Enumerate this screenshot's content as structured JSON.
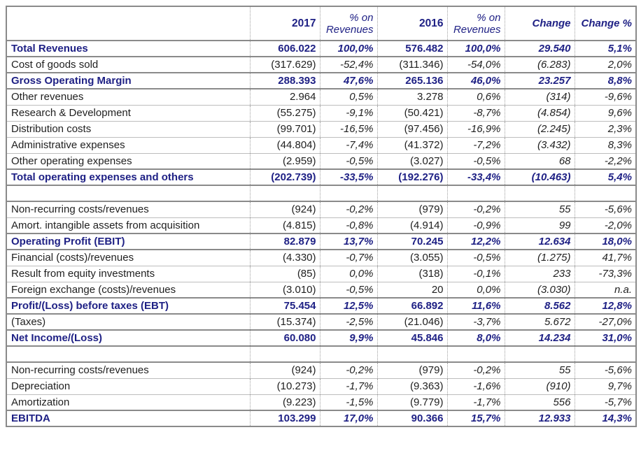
{
  "colors": {
    "navy": "#1f2185",
    "text": "#1f1f1f",
    "grid_thick": "#8a8a8a",
    "grid_thin": "#bdbdbd",
    "grid_dotted": "#9f9f9f",
    "background": "#ffffff"
  },
  "table": {
    "columns": [
      "",
      "2017",
      "% on Revenues",
      "2016",
      "% on Revenues",
      "Change",
      "Change %"
    ],
    "rows": [
      {
        "label": "Total Revenues",
        "v1": "606.022",
        "p1": "100,0%",
        "v2": "576.482",
        "p2": "100,0%",
        "ch": "29.540",
        "chp": "5,1%",
        "bold": true
      },
      {
        "label": "Cost of goods sold",
        "v1": "(317.629)",
        "p1": "-52,4%",
        "v2": "(311.346)",
        "p2": "-54,0%",
        "ch": "(6.283)",
        "chp": "2,0%"
      },
      {
        "label": "Gross Operating Margin",
        "v1": "288.393",
        "p1": "47,6%",
        "v2": "265.136",
        "p2": "46,0%",
        "ch": "23.257",
        "chp": "8,8%",
        "bold": true
      },
      {
        "label": "Other revenues",
        "v1": "2.964",
        "p1": "0,5%",
        "v2": "3.278",
        "p2": "0,6%",
        "ch": "(314)",
        "chp": "-9,6%"
      },
      {
        "label": "Research & Development",
        "v1": "(55.275)",
        "p1": "-9,1%",
        "v2": "(50.421)",
        "p2": "-8,7%",
        "ch": "(4.854)",
        "chp": "9,6%"
      },
      {
        "label": "Distribution costs",
        "v1": "(99.701)",
        "p1": "-16,5%",
        "v2": "(97.456)",
        "p2": "-16,9%",
        "ch": "(2.245)",
        "chp": "2,3%"
      },
      {
        "label": "Administrative expenses",
        "v1": "(44.804)",
        "p1": "-7,4%",
        "v2": "(41.372)",
        "p2": "-7,2%",
        "ch": "(3.432)",
        "chp": "8,3%"
      },
      {
        "label": "Other operating expenses",
        "v1": "(2.959)",
        "p1": "-0,5%",
        "v2": "(3.027)",
        "p2": "-0,5%",
        "ch": "68",
        "chp": "-2,2%"
      },
      {
        "label": "Total operating expenses and others",
        "v1": "(202.739)",
        "p1": "-33,5%",
        "v2": "(192.276)",
        "p2": "-33,4%",
        "ch": "(10.463)",
        "chp": "5,4%",
        "bold": true
      },
      {
        "spacer": true
      },
      {
        "label": "Non-recurring costs/revenues",
        "v1": "(924)",
        "p1": "-0,2%",
        "v2": "(979)",
        "p2": "-0,2%",
        "ch": "55",
        "chp": "-5,6%"
      },
      {
        "label": "Amort. intangible assets from acquisition",
        "v1": "(4.815)",
        "p1": "-0,8%",
        "v2": "(4.914)",
        "p2": "-0,9%",
        "ch": "99",
        "chp": "-2,0%"
      },
      {
        "label": "Operating Profit (EBIT)",
        "v1": "82.879",
        "p1": "13,7%",
        "v2": "70.245",
        "p2": "12,2%",
        "ch": "12.634",
        "chp": "18,0%",
        "bold": true
      },
      {
        "label": "Financial (costs)/revenues",
        "v1": "(4.330)",
        "p1": "-0,7%",
        "v2": "(3.055)",
        "p2": "-0,5%",
        "ch": "(1.275)",
        "chp": "41,7%"
      },
      {
        "label": "Result from equity investments",
        "v1": "(85)",
        "p1": "0,0%",
        "v2": "(318)",
        "p2": "-0,1%",
        "ch": "233",
        "chp": "-73,3%"
      },
      {
        "label": "Foreign exchange (costs)/revenues",
        "v1": "(3.010)",
        "p1": "-0,5%",
        "v2": "20",
        "p2": "0,0%",
        "ch": "(3.030)",
        "chp": "n.a."
      },
      {
        "label": "Profit/(Loss) before taxes (EBT)",
        "v1": "75.454",
        "p1": "12,5%",
        "v2": "66.892",
        "p2": "11,6%",
        "ch": "8.562",
        "chp": "12,8%",
        "bold": true
      },
      {
        "label": "(Taxes)",
        "v1": "(15.374)",
        "p1": "-2,5%",
        "v2": "(21.046)",
        "p2": "-3,7%",
        "ch": "5.672",
        "chp": "-27,0%"
      },
      {
        "label": "Net Income/(Loss)",
        "v1": "60.080",
        "p1": "9,9%",
        "v2": "45.846",
        "p2": "8,0%",
        "ch": "14.234",
        "chp": "31,0%",
        "bold": true
      },
      {
        "spacer": true
      },
      {
        "label": "Non-recurring costs/revenues",
        "v1": "(924)",
        "p1": "-0,2%",
        "v2": "(979)",
        "p2": "-0,2%",
        "ch": "55",
        "chp": "-5,6%"
      },
      {
        "label": "Depreciation",
        "v1": "(10.273)",
        "p1": "-1,7%",
        "v2": "(9.363)",
        "p2": "-1,6%",
        "ch": "(910)",
        "chp": "9,7%"
      },
      {
        "label": "Amortization",
        "v1": "(9.223)",
        "p1": "-1,5%",
        "v2": "(9.779)",
        "p2": "-1,7%",
        "ch": "556",
        "chp": "-5,7%"
      },
      {
        "label": "EBITDA",
        "v1": "103.299",
        "p1": "17,0%",
        "v2": "90.366",
        "p2": "15,7%",
        "ch": "12.933",
        "chp": "14,3%",
        "bold": true
      }
    ]
  }
}
